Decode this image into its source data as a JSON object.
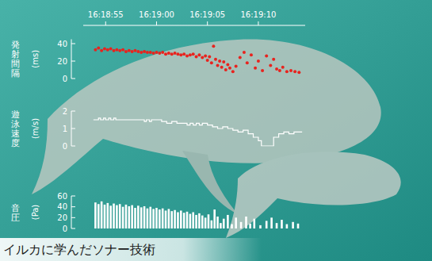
{
  "chart_data": [
    {
      "type": "scatter",
      "ylabel": "発射間隔",
      "ylabel_unit": "(ms)",
      "x": [
        54.0,
        54.3,
        54.6,
        54.9,
        55.2,
        55.5,
        55.8,
        56.1,
        56.4,
        56.7,
        57.0,
        57.3,
        57.6,
        57.9,
        58.2,
        58.5,
        58.8,
        59.1,
        59.4,
        59.7,
        60.0,
        60.3,
        60.6,
        60.9,
        61.2,
        61.5,
        61.8,
        62.1,
        62.4,
        62.7,
        63.0,
        63.3,
        63.6,
        63.9,
        64.2,
        64.5,
        64.8,
        65.0,
        65.2,
        65.4,
        65.6,
        65.8,
        66.0,
        66.2,
        66.4,
        66.6,
        66.8,
        67.0,
        67.2,
        67.5,
        67.8,
        68.2,
        68.6,
        68.9,
        69.3,
        69.7,
        70.0,
        70.4,
        70.8,
        71.2,
        71.5,
        71.8,
        72.1,
        72.4,
        72.8,
        73.2,
        73.6,
        74.0
      ],
      "values": [
        33,
        35,
        32,
        34,
        33,
        34,
        32,
        33,
        32,
        33,
        31,
        32,
        31,
        32,
        31,
        30,
        31,
        30,
        30,
        29,
        30,
        29,
        30,
        28,
        29,
        28,
        29,
        28,
        27,
        28,
        26,
        27,
        28,
        25,
        27,
        24,
        26,
        21,
        25,
        18,
        37,
        22,
        15,
        20,
        13,
        19,
        10,
        16,
        12,
        8,
        14,
        24,
        30,
        18,
        27,
        12,
        20,
        9,
        26,
        15,
        22,
        11,
        9,
        13,
        8,
        9,
        8,
        7
      ],
      "color": "#e8231e",
      "marker": "circle",
      "xlim": [
        52.8,
        74.6
      ],
      "xticks": [
        {
          "value": 55,
          "label": "16:18:55"
        },
        {
          "value": 60,
          "label": "16:19:00"
        },
        {
          "value": 65,
          "label": "16:19:05"
        },
        {
          "value": 70,
          "label": "16:19:10"
        }
      ],
      "ylim": [
        0,
        45
      ],
      "yticks": [
        0,
        20,
        40
      ]
    },
    {
      "type": "line",
      "line_style": "step",
      "ylabel": "遊泳速度",
      "ylabel_unit": "(m/s)",
      "x": [
        53.8,
        54.3,
        54.5,
        54.8,
        55.0,
        55.3,
        55.5,
        55.8,
        56.0,
        58.5,
        58.8,
        59.0,
        59.3,
        59.5,
        60.0,
        60.5,
        61.0,
        61.5,
        62.0,
        62.5,
        63.0,
        63.3,
        63.6,
        63.9,
        64.2,
        64.5,
        65.0,
        65.5,
        66.0,
        66.5,
        67.0,
        67.5,
        68.0,
        68.5,
        69.0,
        69.5,
        70.0,
        70.3,
        71.0,
        71.5,
        72.0,
        72.5,
        73.0,
        73.5,
        74.3
      ],
      "values": [
        1.5,
        1.6,
        1.5,
        1.6,
        1.5,
        1.6,
        1.5,
        1.6,
        1.5,
        1.5,
        1.4,
        1.5,
        1.4,
        1.5,
        1.5,
        1.4,
        1.3,
        1.4,
        1.3,
        1.3,
        1.2,
        1.3,
        1.2,
        1.3,
        1.2,
        1.3,
        1.2,
        1.1,
        1.0,
        1.1,
        1.0,
        0.9,
        0.8,
        0.9,
        0.7,
        0.5,
        0.3,
        0,
        0,
        0.5,
        0.7,
        0.8,
        0.7,
        0.8,
        0.8
      ],
      "color": "#ffffff",
      "tick_labels": "y",
      "xlim": [
        52.8,
        74.6
      ],
      "ylim": [
        0,
        2
      ],
      "yticks": [
        0,
        1,
        2
      ]
    },
    {
      "type": "bar",
      "ylabel": "音圧",
      "ylabel_unit": "(Pa)",
      "x": [
        54.0,
        54.3,
        54.6,
        54.9,
        55.2,
        55.5,
        55.8,
        56.1,
        56.4,
        56.7,
        57.0,
        57.3,
        57.6,
        57.9,
        58.2,
        58.5,
        58.8,
        59.1,
        59.4,
        59.7,
        60.0,
        60.3,
        60.6,
        60.9,
        61.2,
        61.5,
        61.8,
        62.1,
        62.4,
        62.7,
        63.0,
        63.3,
        63.6,
        63.9,
        64.2,
        64.5,
        64.8,
        65.1,
        65.4,
        65.7,
        66.0,
        66.3,
        66.6,
        67.0,
        67.4,
        67.8,
        68.3,
        68.8,
        69.2,
        69.6,
        70.2,
        70.8,
        71.3,
        71.8,
        72.3,
        72.8,
        73.4,
        73.9
      ],
      "values": [
        48,
        45,
        50,
        44,
        47,
        42,
        46,
        43,
        45,
        40,
        44,
        41,
        43,
        38,
        42,
        39,
        41,
        37,
        40,
        36,
        38,
        35,
        37,
        33,
        36,
        32,
        34,
        30,
        33,
        29,
        31,
        27,
        30,
        25,
        28,
        24,
        20,
        26,
        15,
        35,
        22,
        10,
        18,
        25,
        8,
        20,
        12,
        22,
        9,
        18,
        6,
        14,
        20,
        10,
        16,
        8,
        12,
        9
      ],
      "color": "#ffffff",
      "tick_labels": "y",
      "xlim": [
        52.8,
        74.6
      ],
      "ylim": [
        0,
        60
      ],
      "yticks": [
        0,
        20,
        40,
        60
      ]
    }
  ],
  "caption": "イルカに学んだソナー技術"
}
